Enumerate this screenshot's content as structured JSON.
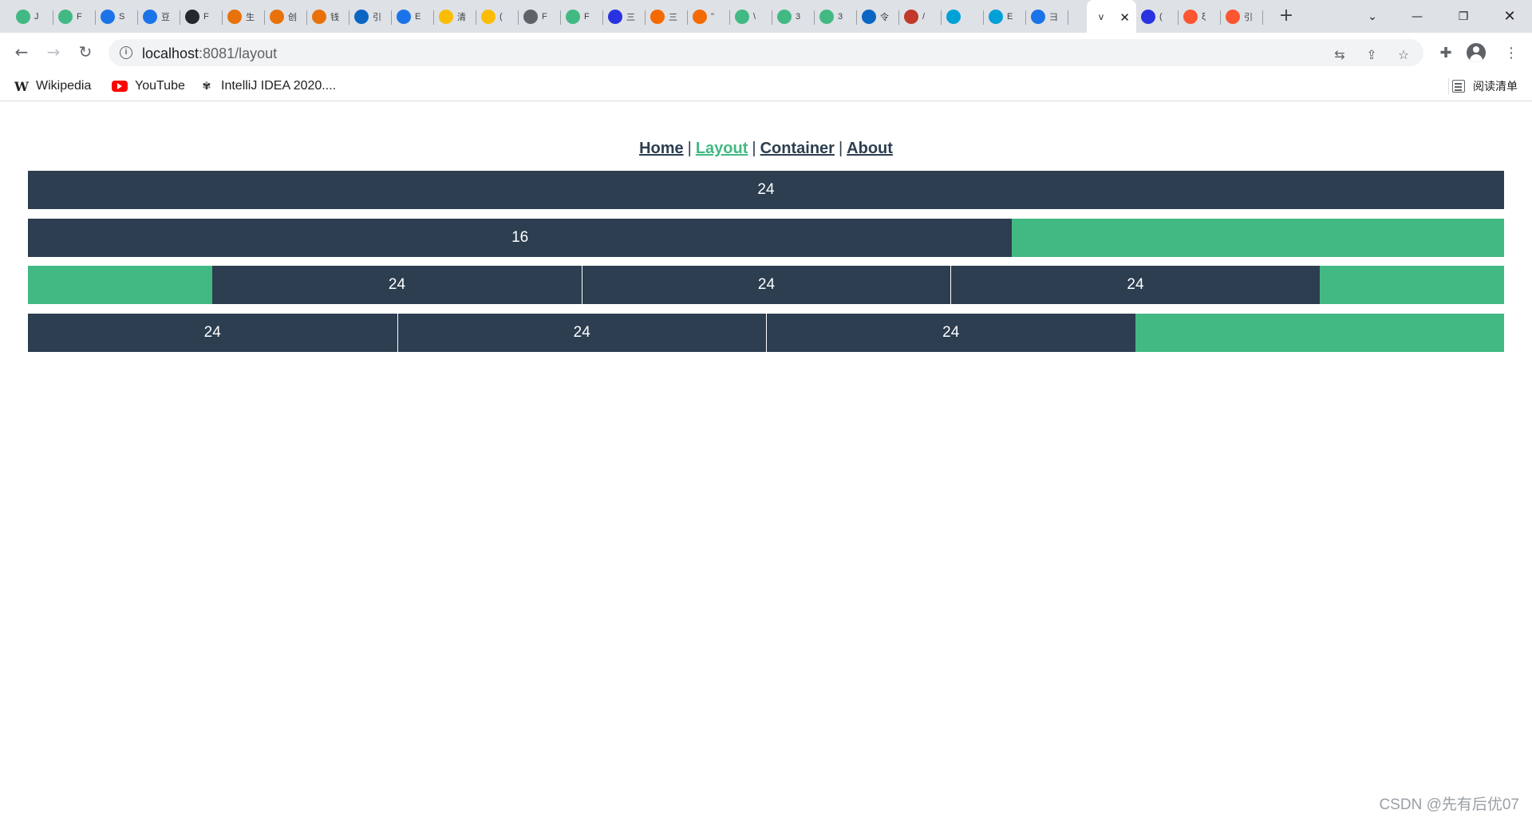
{
  "browser": {
    "tabs": [
      {
        "favicon": "vue-icon",
        "color": "#42b983",
        "title": "J"
      },
      {
        "favicon": "vue-icon",
        "color": "#42b983",
        "title": "F"
      },
      {
        "favicon": "bootstrap-icon",
        "color": "#1a73e8",
        "title": "S"
      },
      {
        "favicon": "bootstrap-icon",
        "color": "#1a73e8",
        "title": "豆"
      },
      {
        "favicon": "github-icon",
        "color": "#24292e",
        "title": "F"
      },
      {
        "favicon": "dev-icon",
        "color": "#e8710a",
        "title": "生"
      },
      {
        "favicon": "dev-icon",
        "color": "#e8710a",
        "title": "创"
      },
      {
        "favicon": "dev-icon",
        "color": "#e8710a",
        "title": "钱"
      },
      {
        "favicon": "zhihu-icon",
        "color": "#0a66c2",
        "title": "引"
      },
      {
        "favicon": "translate-icon",
        "color": "#1a73e8",
        "title": "E"
      },
      {
        "favicon": "lemon-icon",
        "color": "#fbbc05",
        "title": "清"
      },
      {
        "favicon": "lemon-icon",
        "color": "#fbbc05",
        "title": "("
      },
      {
        "favicon": "globe-icon",
        "color": "#5f6368",
        "title": "F"
      },
      {
        "favicon": "vue-icon",
        "color": "#42b983",
        "title": "F"
      },
      {
        "favicon": "baidu-icon",
        "color": "#2932e1",
        "title": "三"
      },
      {
        "favicon": "link-icon",
        "color": "#f56a00",
        "title": "三"
      },
      {
        "favicon": "link-icon",
        "color": "#f56a00",
        "title": "\""
      },
      {
        "favicon": "vue-icon",
        "color": "#42b983",
        "title": "\\"
      },
      {
        "favicon": "vue-icon",
        "color": "#42b983",
        "title": "3"
      },
      {
        "favicon": "vue-icon",
        "color": "#42b983",
        "title": "3"
      },
      {
        "favicon": "zhihu-icon",
        "color": "#0a66c2",
        "title": "令"
      },
      {
        "favicon": "git-icon",
        "color": "#c0392b",
        "title": "/"
      },
      {
        "favicon": "bilibili-icon",
        "color": "#00a1d6",
        "title": ""
      },
      {
        "favicon": "bilibili-icon",
        "color": "#00a1d6",
        "title": "E"
      },
      {
        "favicon": "shield-icon",
        "color": "#1a73e8",
        "title": "彐"
      },
      {
        "favicon": "",
        "color": "#ffffff",
        "title": "v"
      },
      {
        "favicon": "baidu-icon",
        "color": "#2932e1",
        "title": "("
      },
      {
        "favicon": "csdn-icon",
        "color": "#fc5531",
        "title": "ξ"
      },
      {
        "favicon": "csdn-icon",
        "color": "#fc5531",
        "title": "引"
      }
    ],
    "active_tab_index": 25,
    "url_host": "localhost",
    "url_path": ":8081/layout",
    "bookmarks": [
      {
        "label": "Wikipedia",
        "icon": "wikipedia-icon"
      },
      {
        "label": "YouTube",
        "icon": "youtube-icon"
      },
      {
        "label": "IntelliJ IDEA 2020....",
        "icon": "intellij-icon"
      }
    ],
    "reading_list_label": "阅读清单",
    "tab_close_glyph": "✕",
    "new_tab_glyph": "+"
  },
  "page": {
    "nav": [
      {
        "label": "Home",
        "active": false
      },
      {
        "label": "Layout",
        "active": true
      },
      {
        "label": "Container",
        "active": false
      },
      {
        "label": "About",
        "active": false
      }
    ],
    "nav_separator": "|",
    "rows": [
      [
        {
          "label": "24",
          "span": 24,
          "style": "dark"
        }
      ],
      [
        {
          "label": "16",
          "span": 16,
          "style": "dark"
        },
        {
          "label": "",
          "span": 8,
          "style": "green"
        }
      ],
      [
        {
          "label": "",
          "span": 3,
          "style": "green"
        },
        {
          "label": "24",
          "span": 6,
          "style": "dark"
        },
        {
          "label": "24",
          "span": 6,
          "style": "dark"
        },
        {
          "label": "24",
          "span": 6,
          "style": "dark"
        },
        {
          "label": "",
          "span": 3,
          "style": "green"
        }
      ],
      [
        {
          "label": "24",
          "span": 6,
          "style": "dark"
        },
        {
          "label": "24",
          "span": 6,
          "style": "dark"
        },
        {
          "label": "24",
          "span": 6,
          "style": "dark"
        },
        {
          "label": "",
          "span": 6,
          "style": "green"
        }
      ]
    ],
    "colors": {
      "dark": "#2c3e50",
      "green": "#42b983",
      "nav_text": "#2c3e50",
      "nav_active": "#42b983"
    },
    "watermark": "CSDN @先有后优07"
  }
}
